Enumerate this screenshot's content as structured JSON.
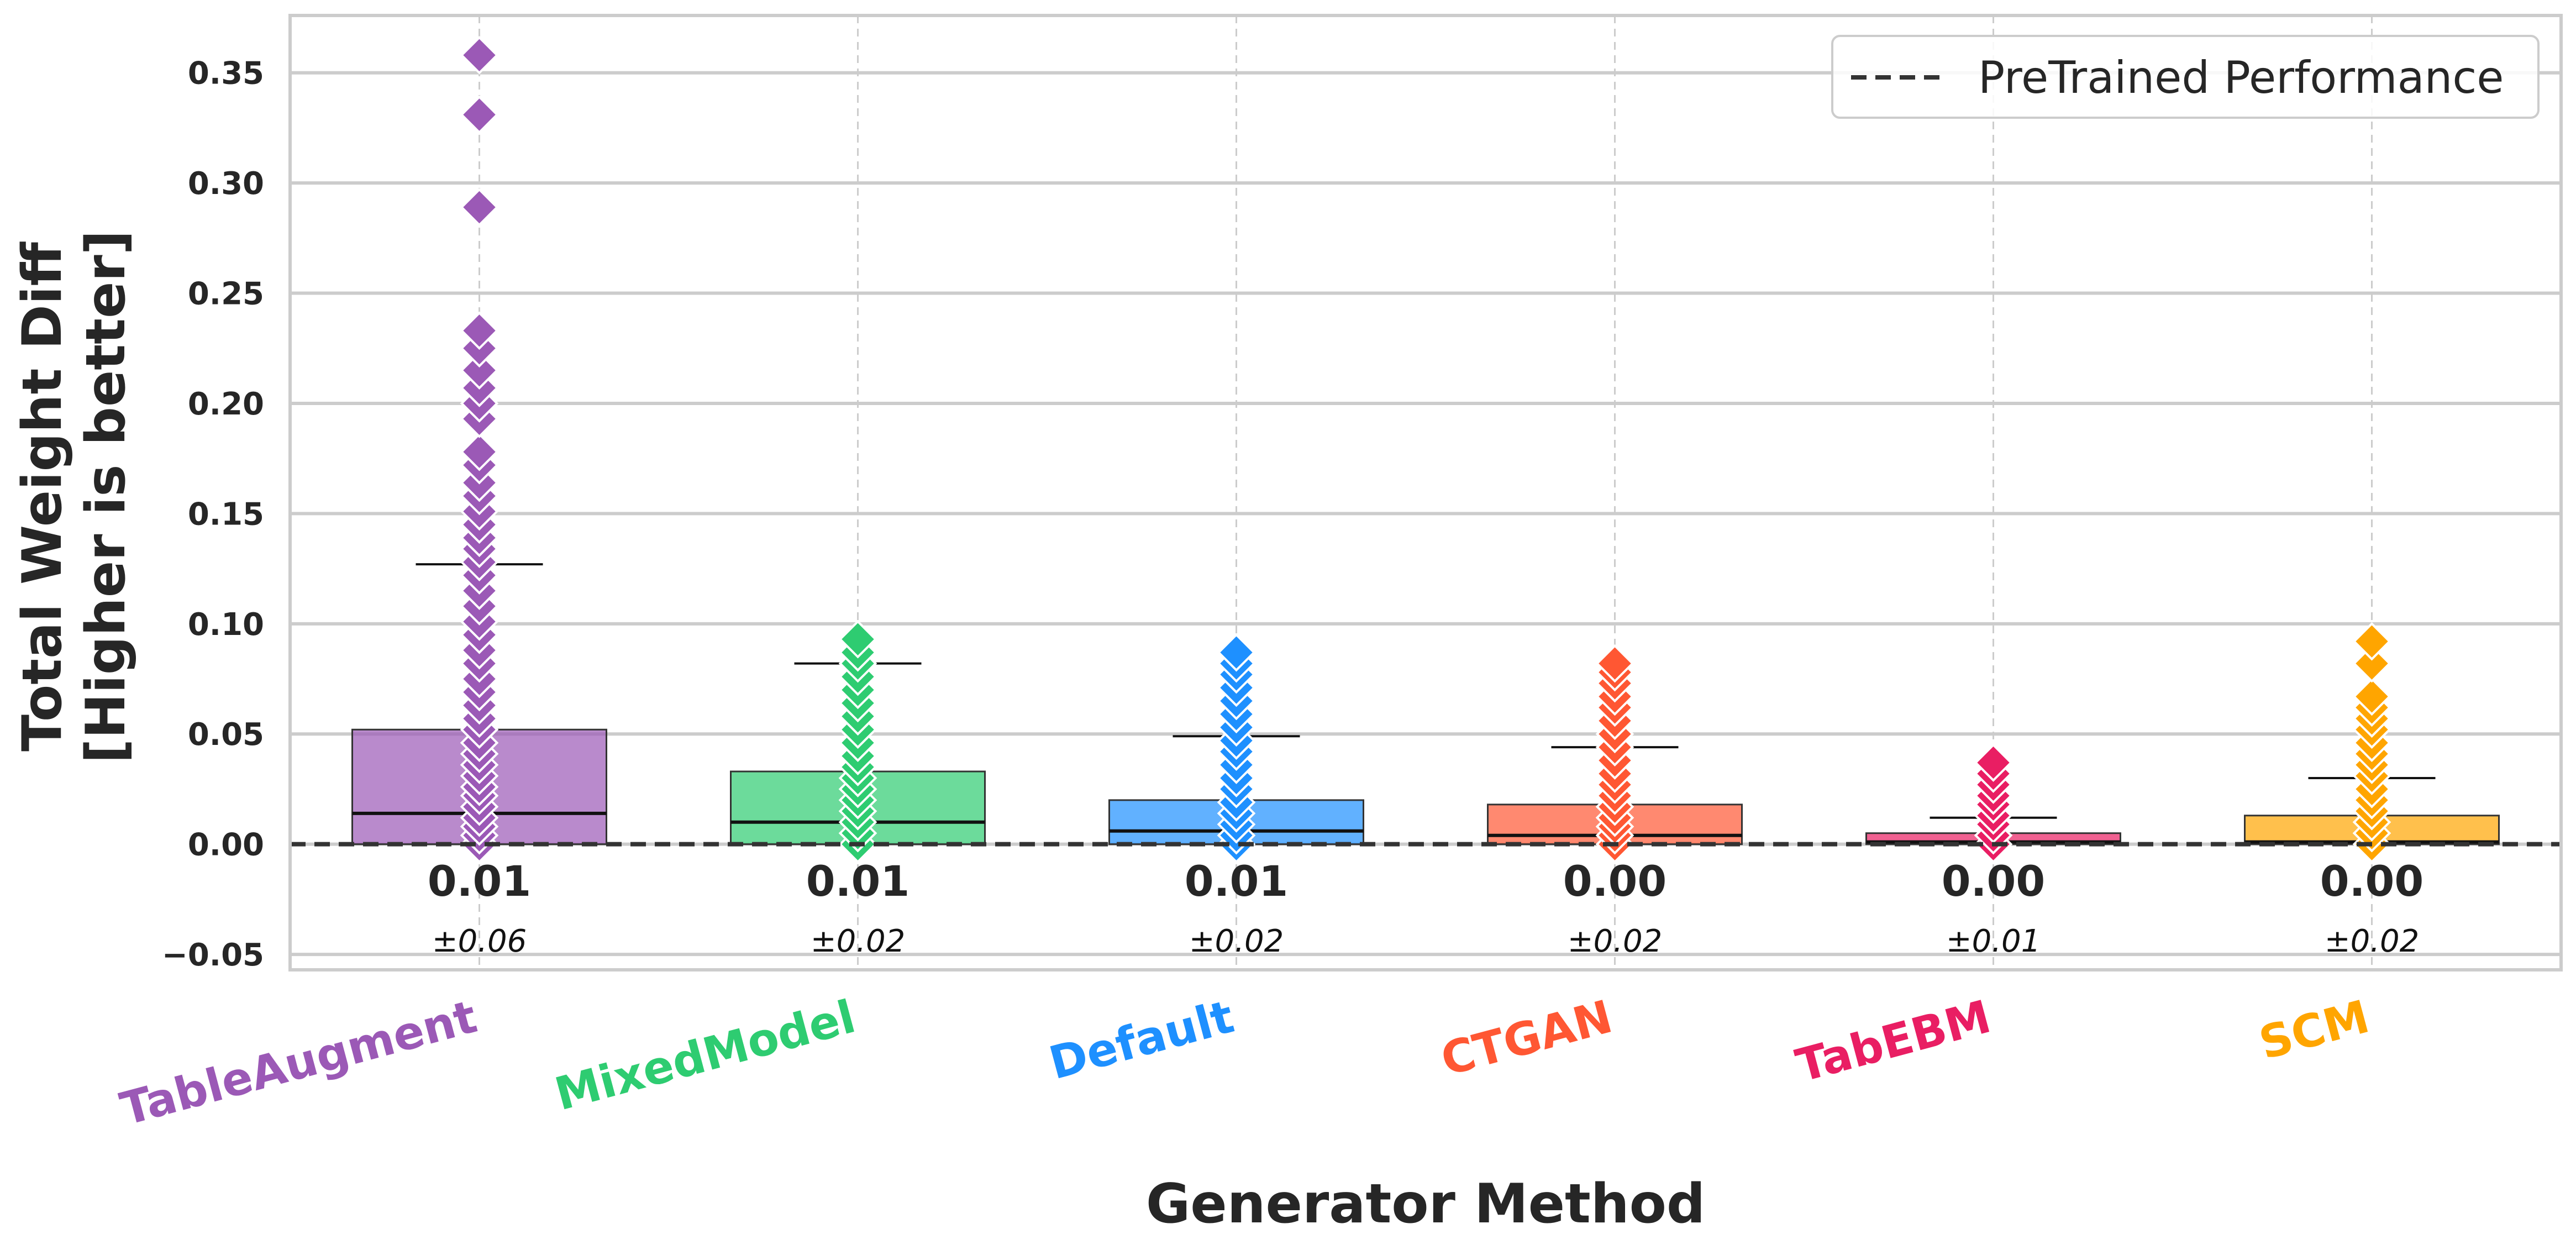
{
  "chart_data": {
    "type": "box",
    "xlabel": "Generator Method",
    "ylabel_lines": [
      "Total Weight Diff",
      "[Higher is better]"
    ],
    "ylim": [
      -0.057,
      0.376
    ],
    "yticks": [
      -0.05,
      0.0,
      0.05,
      0.1,
      0.15,
      0.2,
      0.25,
      0.3,
      0.35
    ],
    "ytick_labels": [
      "−0.05",
      "0.00",
      "0.05",
      "0.10",
      "0.15",
      "0.20",
      "0.25",
      "0.30",
      "0.35"
    ],
    "grid": true,
    "reference_line": {
      "value": 0.0,
      "style": "dashed",
      "label": "PreTrained Performance"
    },
    "legend": {
      "placement": "top-right",
      "entries": [
        "PreTrained Performance"
      ]
    },
    "categories": [
      "TableAugment",
      "MixedModel",
      "Default",
      "CTGAN",
      "TabEBM",
      "SCM"
    ],
    "series": [
      {
        "name": "TableAugment",
        "color": "#9b59b6",
        "q1": 0.0,
        "median": 0.014,
        "q3": 0.052,
        "whisker_low": 0.0,
        "whisker_high": 0.127,
        "median_label": "0.01",
        "std_label": "±0.06",
        "points": [
          0.0,
          0.004,
          0.008,
          0.012,
          0.017,
          0.022,
          0.026,
          0.031,
          0.036,
          0.041,
          0.046,
          0.052,
          0.057,
          0.063,
          0.069,
          0.075,
          0.082,
          0.088,
          0.095,
          0.101,
          0.108,
          0.115,
          0.122,
          0.128,
          0.134,
          0.139,
          0.145,
          0.151,
          0.158,
          0.164,
          0.172,
          0.178,
          0.193,
          0.2,
          0.207,
          0.215,
          0.225,
          0.233,
          0.289,
          0.331,
          0.358
        ]
      },
      {
        "name": "MixedModel",
        "color": "#2ecc71",
        "q1": 0.0,
        "median": 0.01,
        "q3": 0.033,
        "whisker_low": 0.0,
        "whisker_high": 0.082,
        "median_label": "0.01",
        "std_label": "±0.02",
        "points": [
          0.0,
          0.005,
          0.01,
          0.015,
          0.02,
          0.025,
          0.03,
          0.035,
          0.04,
          0.046,
          0.052,
          0.058,
          0.064,
          0.07,
          0.076,
          0.082,
          0.087,
          0.093
        ]
      },
      {
        "name": "Default",
        "color": "#1e90ff",
        "q1": 0.0,
        "median": 0.006,
        "q3": 0.02,
        "whisker_low": 0.0,
        "whisker_high": 0.049,
        "median_label": "0.01",
        "std_label": "±0.02",
        "points": [
          0.0,
          0.004,
          0.009,
          0.014,
          0.019,
          0.025,
          0.03,
          0.036,
          0.042,
          0.047,
          0.053,
          0.059,
          0.065,
          0.071,
          0.077,
          0.082,
          0.087
        ]
      },
      {
        "name": "CTGAN",
        "color": "#ff5733",
        "q1": 0.0,
        "median": 0.004,
        "q3": 0.018,
        "whisker_low": 0.0,
        "whisker_high": 0.044,
        "median_label": "0.00",
        "std_label": "±0.02",
        "points": [
          0.0,
          0.004,
          0.008,
          0.012,
          0.017,
          0.022,
          0.027,
          0.032,
          0.038,
          0.044,
          0.05,
          0.056,
          0.062,
          0.067,
          0.073,
          0.078,
          0.082
        ]
      },
      {
        "name": "TabEBM",
        "color": "#e91e63",
        "q1": 0.0,
        "median": 0.001,
        "q3": 0.005,
        "whisker_low": 0.0,
        "whisker_high": 0.012,
        "median_label": "0.00",
        "std_label": "±0.01",
        "points": [
          0.0,
          0.004,
          0.009,
          0.013,
          0.018,
          0.022,
          0.027,
          0.032,
          0.037
        ]
      },
      {
        "name": "SCM",
        "color": "#ffa500",
        "q1": 0.0,
        "median": 0.001,
        "q3": 0.013,
        "whisker_low": 0.0,
        "whisker_high": 0.03,
        "median_label": "0.00",
        "std_label": "±0.02",
        "points": [
          0.0,
          0.005,
          0.01,
          0.015,
          0.02,
          0.025,
          0.031,
          0.036,
          0.041,
          0.046,
          0.052,
          0.057,
          0.062,
          0.067,
          0.082,
          0.092
        ]
      }
    ]
  }
}
